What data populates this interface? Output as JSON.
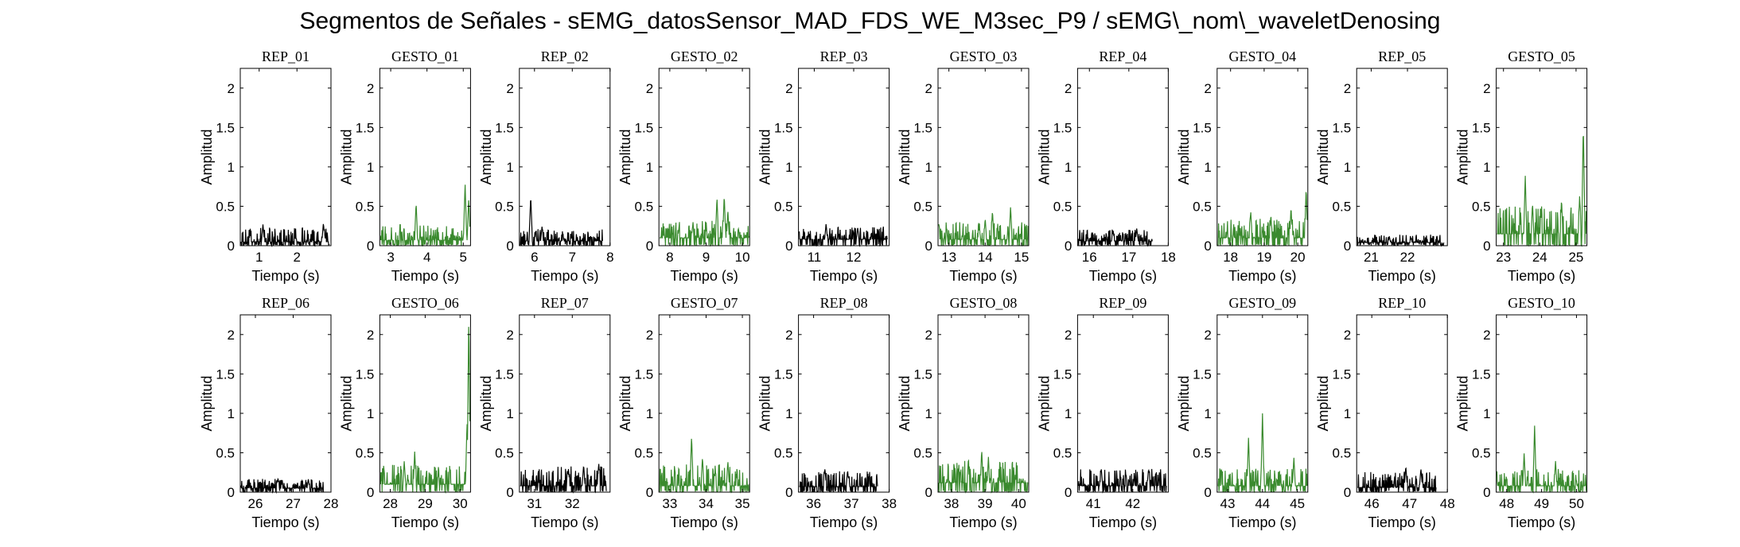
{
  "figure": {
    "title": "Segmentos de Señales - sEMG_datosSensor_MAD_FDS_WE_M3sec_P9 / sEMG\\_nom\\_waveletDenosing"
  },
  "colors": {
    "rep": "#000000",
    "gesto": "#3a8a2e",
    "axes": "#000000"
  },
  "chart_data": [
    {
      "type": "line",
      "title": "REP_01",
      "xlabel": "Tiempo (s)",
      "ylabel": "Amplitud",
      "xlim": [
        0.5,
        2.9
      ],
      "ylim": [
        0,
        2.25
      ],
      "xticks": [
        1,
        2
      ],
      "yticks": [
        0,
        0.5,
        1,
        1.5,
        2
      ],
      "series": [
        {
          "color": "#000000",
          "x_range": [
            0.52,
            2.86
          ],
          "base": 0.05,
          "spread": 0.18,
          "peaks": [
            [
              1.1,
              0.27
            ],
            [
              2.7,
              0.29
            ]
          ]
        }
      ]
    },
    {
      "type": "line",
      "title": "GESTO_01",
      "xlabel": "Tiempo (s)",
      "ylabel": "Amplitud",
      "xlim": [
        2.7,
        5.2
      ],
      "ylim": [
        0,
        2.25
      ],
      "xticks": [
        3,
        4,
        5
      ],
      "yticks": [
        0,
        0.5,
        1,
        1.5,
        2
      ],
      "series": [
        {
          "color": "#3a8a2e",
          "x_range": [
            2.72,
            5.18
          ],
          "base": 0.07,
          "spread": 0.2,
          "peaks": [
            [
              3.7,
              0.55
            ],
            [
              5.05,
              0.8
            ],
            [
              5.15,
              0.6
            ]
          ]
        }
      ]
    },
    {
      "type": "line",
      "title": "REP_02",
      "xlabel": "Tiempo (s)",
      "ylabel": "Amplitud",
      "xlim": [
        5.6,
        8
      ],
      "ylim": [
        0,
        2.25
      ],
      "xticks": [
        6,
        7,
        8
      ],
      "yticks": [
        0,
        0.5,
        1,
        1.5,
        2
      ],
      "series": [
        {
          "color": "#000000",
          "x_range": [
            5.62,
            7.8
          ],
          "base": 0.06,
          "spread": 0.15,
          "peaks": [
            [
              5.9,
              0.63
            ],
            [
              6.2,
              0.25
            ]
          ]
        }
      ]
    },
    {
      "type": "line",
      "title": "GESTO_02",
      "xlabel": "Tiempo (s)",
      "ylabel": "Amplitud",
      "xlim": [
        7.7,
        10.2
      ],
      "ylim": [
        0,
        2.25
      ],
      "xticks": [
        8,
        9,
        10
      ],
      "yticks": [
        0,
        0.5,
        1,
        1.5,
        2
      ],
      "series": [
        {
          "color": "#3a8a2e",
          "x_range": [
            7.72,
            10.18
          ],
          "base": 0.1,
          "spread": 0.22,
          "peaks": [
            [
              9.3,
              0.62
            ],
            [
              9.5,
              0.65
            ],
            [
              9.6,
              0.45
            ]
          ]
        }
      ]
    },
    {
      "type": "line",
      "title": "REP_03",
      "xlabel": "Tiempo (s)",
      "ylabel": "Amplitud",
      "xlim": [
        10.6,
        12.9
      ],
      "ylim": [
        0,
        2.25
      ],
      "xticks": [
        11,
        12
      ],
      "yticks": [
        0,
        0.5,
        1,
        1.5,
        2
      ],
      "series": [
        {
          "color": "#000000",
          "x_range": [
            10.62,
            12.85
          ],
          "base": 0.08,
          "spread": 0.17,
          "peaks": [
            [
              11.3,
              0.28
            ],
            [
              12.1,
              0.24
            ]
          ]
        }
      ]
    },
    {
      "type": "line",
      "title": "GESTO_03",
      "xlabel": "Tiempo (s)",
      "ylabel": "Amplitud",
      "xlim": [
        12.7,
        15.2
      ],
      "ylim": [
        0,
        2.25
      ],
      "xticks": [
        13,
        14,
        15
      ],
      "yticks": [
        0,
        0.5,
        1,
        1.5,
        2
      ],
      "series": [
        {
          "color": "#3a8a2e",
          "x_range": [
            12.72,
            15.18
          ],
          "base": 0.08,
          "spread": 0.22,
          "peaks": [
            [
              14.2,
              0.45
            ],
            [
              14.7,
              0.5
            ],
            [
              14.0,
              0.35
            ]
          ]
        }
      ]
    },
    {
      "type": "line",
      "title": "REP_04",
      "xlabel": "Tiempo (s)",
      "ylabel": "Amplitud",
      "xlim": [
        15.7,
        18
      ],
      "ylim": [
        0,
        2.25
      ],
      "xticks": [
        16,
        17,
        18
      ],
      "yticks": [
        0,
        0.5,
        1,
        1.5,
        2
      ],
      "series": [
        {
          "color": "#000000",
          "x_range": [
            15.72,
            17.6
          ],
          "base": 0.06,
          "spread": 0.15,
          "peaks": [
            [
              17.2,
              0.22
            ],
            [
              16.6,
              0.2
            ]
          ]
        }
      ]
    },
    {
      "type": "line",
      "title": "GESTO_04",
      "xlabel": "Tiempo (s)",
      "ylabel": "Amplitud",
      "xlim": [
        17.6,
        20.3
      ],
      "ylim": [
        0,
        2.25
      ],
      "xticks": [
        18,
        19,
        20
      ],
      "yticks": [
        0,
        0.5,
        1,
        1.5,
        2
      ],
      "series": [
        {
          "color": "#3a8a2e",
          "x_range": [
            17.62,
            20.28
          ],
          "base": 0.1,
          "spread": 0.25,
          "peaks": [
            [
              18.6,
              0.45
            ],
            [
              19.8,
              0.5
            ],
            [
              20.25,
              0.75
            ],
            [
              19.2,
              0.4
            ]
          ]
        }
      ]
    },
    {
      "type": "line",
      "title": "REP_05",
      "xlabel": "Tiempo (s)",
      "ylabel": "Amplitud",
      "xlim": [
        20.6,
        23.1
      ],
      "ylim": [
        0,
        2.25
      ],
      "xticks": [
        21,
        22
      ],
      "yticks": [
        0,
        0.5,
        1,
        1.5,
        2
      ],
      "series": [
        {
          "color": "#000000",
          "x_range": [
            20.62,
            23.0
          ],
          "base": 0.04,
          "spread": 0.1,
          "peaks": [
            [
              21.5,
              0.12
            ],
            [
              22.1,
              0.1
            ]
          ]
        }
      ]
    },
    {
      "type": "line",
      "title": "GESTO_05",
      "xlabel": "Tiempo (s)",
      "ylabel": "Amplitud",
      "xlim": [
        22.8,
        25.3
      ],
      "ylim": [
        0,
        2.25
      ],
      "xticks": [
        23,
        24,
        25
      ],
      "yticks": [
        0,
        0.5,
        1,
        1.5,
        2
      ],
      "series": [
        {
          "color": "#3a8a2e",
          "x_range": [
            22.82,
            25.28
          ],
          "base": 0.15,
          "spread": 0.35,
          "peaks": [
            [
              23.6,
              0.9
            ],
            [
              23.8,
              0.55
            ],
            [
              24.6,
              0.6
            ],
            [
              25.2,
              1.55
            ],
            [
              25.1,
              0.65
            ]
          ]
        }
      ]
    },
    {
      "type": "line",
      "title": "REP_06",
      "xlabel": "Tiempo (s)",
      "ylabel": "Amplitud",
      "xlim": [
        25.6,
        28
      ],
      "ylim": [
        0,
        2.25
      ],
      "xticks": [
        26,
        27,
        28
      ],
      "yticks": [
        0,
        0.5,
        1,
        1.5,
        2
      ],
      "series": [
        {
          "color": "#000000",
          "x_range": [
            25.62,
            27.8
          ],
          "base": 0.05,
          "spread": 0.12,
          "peaks": [
            [
              26.6,
              0.18
            ],
            [
              27.4,
              0.17
            ]
          ]
        }
      ]
    },
    {
      "type": "line",
      "title": "GESTO_06",
      "xlabel": "Tiempo (s)",
      "ylabel": "Amplitud",
      "xlim": [
        27.7,
        30.3
      ],
      "ylim": [
        0,
        2.25
      ],
      "xticks": [
        28,
        29,
        30
      ],
      "yticks": [
        0,
        0.5,
        1,
        1.5,
        2
      ],
      "series": [
        {
          "color": "#3a8a2e",
          "x_range": [
            27.72,
            30.28
          ],
          "base": 0.1,
          "spread": 0.25,
          "peaks": [
            [
              28.7,
              0.52
            ],
            [
              28.4,
              0.4
            ],
            [
              30.25,
              2.25
            ],
            [
              30.2,
              0.9
            ]
          ]
        }
      ]
    },
    {
      "type": "line",
      "title": "REP_07",
      "xlabel": "Tiempo (s)",
      "ylabel": "Amplitud",
      "xlim": [
        30.6,
        33
      ],
      "ylim": [
        0,
        2.25
      ],
      "xticks": [
        31,
        32
      ],
      "yticks": [
        0,
        0.5,
        1,
        1.5,
        2
      ],
      "series": [
        {
          "color": "#000000",
          "x_range": [
            30.62,
            32.9
          ],
          "base": 0.08,
          "spread": 0.25,
          "peaks": [
            [
              32.3,
              0.35
            ],
            [
              32.7,
              0.37
            ],
            [
              31.9,
              0.3
            ]
          ]
        }
      ]
    },
    {
      "type": "line",
      "title": "GESTO_07",
      "xlabel": "Tiempo (s)",
      "ylabel": "Amplitud",
      "xlim": [
        32.7,
        35.2
      ],
      "ylim": [
        0,
        2.25
      ],
      "xticks": [
        33,
        34,
        35
      ],
      "yticks": [
        0,
        0.5,
        1,
        1.5,
        2
      ],
      "series": [
        {
          "color": "#3a8a2e",
          "x_range": [
            32.72,
            35.18
          ],
          "base": 0.08,
          "spread": 0.28,
          "peaks": [
            [
              33.6,
              0.72
            ],
            [
              33.9,
              0.45
            ],
            [
              34.6,
              0.4
            ]
          ]
        }
      ]
    },
    {
      "type": "line",
      "title": "REP_08",
      "xlabel": "Tiempo (s)",
      "ylabel": "Amplitud",
      "xlim": [
        35.6,
        38
      ],
      "ylim": [
        0,
        2.25
      ],
      "xticks": [
        36,
        37,
        38
      ],
      "yticks": [
        0,
        0.5,
        1,
        1.5,
        2
      ],
      "series": [
        {
          "color": "#000000",
          "x_range": [
            35.62,
            37.7
          ],
          "base": 0.07,
          "spread": 0.2,
          "peaks": [
            [
              36.3,
              0.3
            ],
            [
              36.9,
              0.28
            ]
          ]
        }
      ]
    },
    {
      "type": "line",
      "title": "GESTO_08",
      "xlabel": "Tiempo (s)",
      "ylabel": "Amplitud",
      "xlim": [
        37.6,
        40.3
      ],
      "ylim": [
        0,
        2.25
      ],
      "xticks": [
        38,
        39,
        40
      ],
      "yticks": [
        0,
        0.5,
        1,
        1.5,
        2
      ],
      "series": [
        {
          "color": "#3a8a2e",
          "x_range": [
            37.62,
            40.28
          ],
          "base": 0.12,
          "spread": 0.28,
          "peaks": [
            [
              38.9,
              0.55
            ],
            [
              39.1,
              0.45
            ],
            [
              38.5,
              0.4
            ]
          ]
        }
      ]
    },
    {
      "type": "line",
      "title": "REP_09",
      "xlabel": "Tiempo (s)",
      "ylabel": "Amplitud",
      "xlim": [
        40.6,
        42.9
      ],
      "ylim": [
        0,
        2.25
      ],
      "xticks": [
        41,
        42
      ],
      "yticks": [
        0,
        0.5,
        1,
        1.5,
        2
      ],
      "series": [
        {
          "color": "#000000",
          "x_range": [
            40.62,
            42.85
          ],
          "base": 0.08,
          "spread": 0.22,
          "peaks": [
            [
              41.2,
              0.3
            ],
            [
              42.4,
              0.3
            ]
          ]
        }
      ]
    },
    {
      "type": "line",
      "title": "GESTO_09",
      "xlabel": "Tiempo (s)",
      "ylabel": "Amplitud",
      "xlim": [
        42.7,
        45.3
      ],
      "ylim": [
        0,
        2.25
      ],
      "xticks": [
        43,
        44,
        45
      ],
      "yticks": [
        0,
        0.5,
        1,
        1.5,
        2
      ],
      "series": [
        {
          "color": "#3a8a2e",
          "x_range": [
            42.72,
            45.28
          ],
          "base": 0.08,
          "spread": 0.22,
          "peaks": [
            [
              44.0,
              1.0
            ],
            [
              43.6,
              0.7
            ],
            [
              44.9,
              0.45
            ]
          ]
        }
      ]
    },
    {
      "type": "line",
      "title": "REP_10",
      "xlabel": "Tiempo (s)",
      "ylabel": "Amplitud",
      "xlim": [
        45.6,
        48
      ],
      "ylim": [
        0,
        2.25
      ],
      "xticks": [
        46,
        47,
        48
      ],
      "yticks": [
        0,
        0.5,
        1,
        1.5,
        2
      ],
      "series": [
        {
          "color": "#000000",
          "x_range": [
            45.62,
            47.7
          ],
          "base": 0.06,
          "spread": 0.2,
          "peaks": [
            [
              46.9,
              0.33
            ],
            [
              47.3,
              0.3
            ]
          ]
        }
      ]
    },
    {
      "type": "line",
      "title": "GESTO_10",
      "xlabel": "Tiempo (s)",
      "ylabel": "Amplitud",
      "xlim": [
        47.7,
        50.3
      ],
      "ylim": [
        0,
        2.25
      ],
      "xticks": [
        48,
        49,
        50
      ],
      "yticks": [
        0,
        0.5,
        1,
        1.5,
        2
      ],
      "series": [
        {
          "color": "#3a8a2e",
          "x_range": [
            47.72,
            50.28
          ],
          "base": 0.08,
          "spread": 0.22,
          "peaks": [
            [
              48.8,
              0.85
            ],
            [
              48.5,
              0.5
            ],
            [
              49.4,
              0.4
            ]
          ]
        }
      ]
    }
  ]
}
